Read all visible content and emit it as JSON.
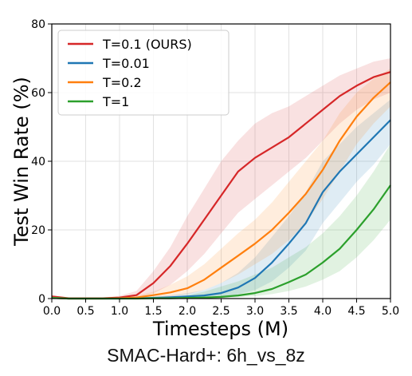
{
  "caption": "SMAC-Hard+: 6h_vs_8z",
  "chart_data": {
    "type": "line",
    "xlabel": "Timesteps (M)",
    "ylabel": "Test Win Rate (%)",
    "xlim": [
      0,
      5
    ],
    "ylim": [
      0,
      80
    ],
    "xticks": [
      "0.0",
      "0.5",
      "1.0",
      "1.5",
      "2.0",
      "2.5",
      "3.0",
      "3.5",
      "4.0",
      "4.5",
      "5.0"
    ],
    "yticks": [
      "0",
      "20",
      "40",
      "60",
      "80"
    ],
    "grid": true,
    "legend_position": "top-left",
    "x": [
      0.0,
      0.25,
      0.5,
      0.75,
      1.0,
      1.25,
      1.5,
      1.75,
      2.0,
      2.25,
      2.5,
      2.75,
      3.0,
      3.25,
      3.5,
      3.75,
      4.0,
      4.25,
      4.5,
      4.75,
      5.0
    ],
    "series": [
      {
        "name": "T=0.1 (OURS)",
        "color": "#d62728",
        "values": [
          0.6,
          0.1,
          0.1,
          0.1,
          0.3,
          1.0,
          4.5,
          9.5,
          16,
          23,
          30,
          37,
          41,
          44,
          47,
          51,
          55,
          59,
          62,
          64.5,
          66
        ],
        "lower": [
          0.2,
          0.0,
          0.0,
          0.0,
          0.0,
          0.3,
          1.5,
          4.0,
          8.0,
          13,
          19,
          25,
          29,
          33,
          37,
          41,
          46,
          51,
          55,
          58,
          60
        ],
        "upper": [
          1.0,
          0.3,
          0.3,
          0.3,
          0.8,
          2.2,
          8.0,
          15,
          24,
          32,
          40,
          46,
          51,
          54,
          56,
          59,
          62,
          65,
          67,
          69,
          70
        ]
      },
      {
        "name": "T=0.01",
        "color": "#1f77b4",
        "values": [
          0.2,
          0.0,
          0.0,
          0.0,
          0.0,
          0.1,
          0.2,
          0.4,
          0.6,
          0.9,
          1.6,
          3.2,
          6.0,
          10.5,
          16,
          22,
          31,
          37,
          42,
          47,
          52
        ],
        "lower": [
          0.0,
          0.0,
          0.0,
          0.0,
          0.0,
          0.0,
          0.0,
          0.0,
          0.1,
          0.2,
          0.5,
          1.2,
          2.5,
          5.0,
          9.0,
          14,
          22,
          28,
          34,
          39,
          45
        ],
        "upper": [
          0.5,
          0.1,
          0.1,
          0.1,
          0.2,
          0.3,
          0.6,
          1.0,
          1.6,
          2.5,
          4.5,
          7.5,
          12,
          18,
          24,
          31,
          40,
          45,
          50,
          54,
          58
        ]
      },
      {
        "name": "T=0.2",
        "color": "#ff7f0e",
        "values": [
          0.2,
          0.0,
          0.0,
          0.0,
          0.1,
          0.3,
          1.0,
          1.8,
          3.0,
          5.5,
          9.0,
          12.5,
          16,
          20,
          25,
          30.5,
          37.5,
          46,
          53,
          58.5,
          63
        ],
        "lower": [
          0.0,
          0.0,
          0.0,
          0.0,
          0.0,
          0.1,
          0.3,
          0.6,
          1.2,
          2.5,
          4.5,
          7.0,
          10,
          13,
          17,
          22,
          29,
          37,
          45,
          51,
          56
        ],
        "upper": [
          0.5,
          0.1,
          0.1,
          0.1,
          0.3,
          0.8,
          2.0,
          4.0,
          6.5,
          10,
          14.5,
          19,
          23,
          28,
          34,
          40,
          46,
          54,
          60,
          64,
          67
        ]
      },
      {
        "name": "T=1",
        "color": "#2ca02c",
        "values": [
          0.2,
          0.0,
          0.0,
          0.0,
          0.0,
          0.0,
          0.1,
          0.1,
          0.2,
          0.3,
          0.5,
          0.9,
          1.6,
          2.8,
          4.8,
          7.0,
          10.5,
          14.5,
          20,
          26,
          33
        ],
        "lower": [
          0.0,
          0.0,
          0.0,
          0.0,
          0.0,
          0.0,
          0.0,
          0.0,
          0.0,
          0.1,
          0.2,
          0.4,
          0.7,
          1.3,
          2.2,
          3.5,
          5.5,
          8.0,
          12,
          17,
          23
        ],
        "upper": [
          0.4,
          0.1,
          0.1,
          0.1,
          0.1,
          0.1,
          0.3,
          0.5,
          1.0,
          2.0,
          3.5,
          5.0,
          7.0,
          9.0,
          12,
          15,
          19,
          24,
          30,
          37,
          45
        ]
      }
    ]
  }
}
